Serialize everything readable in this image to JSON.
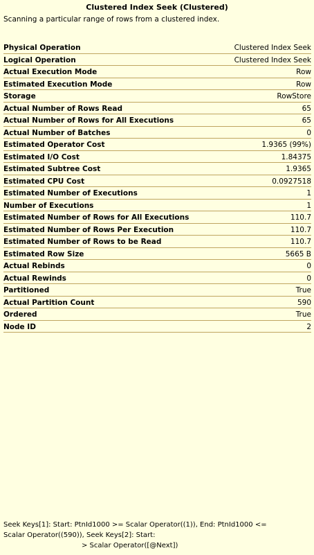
{
  "tooltip": {
    "title": "Clustered Index Seek (Clustered)",
    "description": "Scanning a particular range of rows from a clustered index.",
    "properties": [
      {
        "label": "Physical Operation",
        "value": "Clustered Index Seek"
      },
      {
        "label": "Logical Operation",
        "value": "Clustered Index Seek"
      },
      {
        "label": "Actual Execution Mode",
        "value": "Row"
      },
      {
        "label": "Estimated Execution Mode",
        "value": "Row"
      },
      {
        "label": "Storage",
        "value": "RowStore"
      },
      {
        "label": "Actual Number of Rows Read",
        "value": "65"
      },
      {
        "label": "Actual Number of Rows for All Executions",
        "value": "65"
      },
      {
        "label": "Actual Number of Batches",
        "value": "0"
      },
      {
        "label": "Estimated Operator Cost",
        "value": "1.9365 (99%)"
      },
      {
        "label": "Estimated I/O Cost",
        "value": "1.84375"
      },
      {
        "label": "Estimated Subtree Cost",
        "value": "1.9365"
      },
      {
        "label": "Estimated CPU Cost",
        "value": "0.0927518"
      },
      {
        "label": "Estimated Number of Executions",
        "value": "1"
      },
      {
        "label": "Number of Executions",
        "value": "1"
      },
      {
        "label": "Estimated Number of Rows for All Executions",
        "value": "110.7"
      },
      {
        "label": "Estimated Number of Rows Per Execution",
        "value": "110.7"
      },
      {
        "label": "Estimated Number of Rows to be Read",
        "value": "110.7"
      },
      {
        "label": "Estimated Row Size",
        "value": "5665 B"
      },
      {
        "label": "Actual Rebinds",
        "value": "0"
      },
      {
        "label": "Actual Rewinds",
        "value": "0"
      },
      {
        "label": "Partitioned",
        "value": "True"
      },
      {
        "label": "Actual Partition Count",
        "value": "590"
      },
      {
        "label": "Ordered",
        "value": "True"
      },
      {
        "label": "Node ID",
        "value": "2"
      }
    ],
    "seek_predicates": {
      "line1": "Seek Keys[1]: Start: PtnId1000 >= Scalar Operator((1)), End: PtnId1000 <=",
      "line2": "Scalar Operator((590)), Seek Keys[2]: Start:",
      "line3": "> Scalar Operator([@Next])"
    },
    "colors": {
      "background": "#ffffe1",
      "row_separator": "#bfa560",
      "text": "#000000"
    }
  }
}
